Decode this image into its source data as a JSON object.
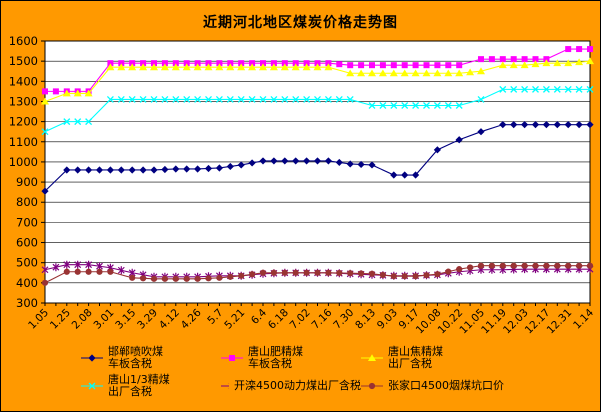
{
  "chart_data": {
    "type": "line",
    "title": "近期河北地区煤炭价格走势图",
    "xlabel": "",
    "ylabel": "",
    "ylim": [
      300,
      1600
    ],
    "ytick_step": 100,
    "grid": "horizontal",
    "legend_position": "bottom",
    "background_color": "#FF9900",
    "plot_background_color": "#FFFFFF",
    "categories": [
      "1.05",
      "1.25",
      "2.08",
      "3.01",
      "3.15",
      "3.29",
      "4.12",
      "4.26",
      "5.7",
      "5.21",
      "6.4",
      "6.18",
      "7.02",
      "7.16",
      "7.30",
      "8.13",
      "9.03",
      "9.17",
      "10.08",
      "10.22",
      "11.05",
      "11.19",
      "12.03",
      "12.17",
      "12.31",
      "1.14"
    ],
    "series": [
      {
        "name": "邯郸喷吹煤车板含税",
        "legend_lines": [
          "邯郸喷吹煤",
          "车板含税"
        ],
        "color": "#000080",
        "marker": "diamond",
        "values": [
          855,
          960,
          960,
          960,
          960,
          960,
          965,
          965,
          970,
          985,
          1005,
          1005,
          1005,
          1005,
          990,
          985,
          935,
          935,
          1060,
          1110,
          1150,
          1185,
          1185,
          1185,
          1185,
          1185
        ]
      },
      {
        "name": "唐山肥精煤车板含税",
        "legend_lines": [
          "唐山肥精煤",
          "车板含税"
        ],
        "color": "#FF00FF",
        "marker": "square",
        "values": [
          1350,
          1350,
          1350,
          1490,
          1490,
          1490,
          1490,
          1490,
          1490,
          1490,
          1490,
          1490,
          1490,
          1490,
          1480,
          1480,
          1480,
          1480,
          1480,
          1480,
          1510,
          1510,
          1510,
          1510,
          1560,
          1560
        ]
      },
      {
        "name": "唐山焦精煤出厂含税",
        "legend_lines": [
          "唐山焦精煤",
          "出厂含税"
        ],
        "color": "#FFFF00",
        "marker": "triangle",
        "values": [
          1300,
          1340,
          1340,
          1470,
          1470,
          1470,
          1470,
          1470,
          1470,
          1470,
          1470,
          1470,
          1470,
          1470,
          1440,
          1440,
          1440,
          1440,
          1440,
          1440,
          1450,
          1480,
          1480,
          1490,
          1490,
          1500
        ]
      },
      {
        "name": "唐山1/3精煤出厂含税",
        "legend_lines": [
          "唐山1/3精煤",
          "出厂含税"
        ],
        "color": "#00FFFF",
        "marker": "x",
        "values": [
          1150,
          1200,
          1200,
          1310,
          1310,
          1310,
          1310,
          1310,
          1310,
          1310,
          1310,
          1310,
          1310,
          1310,
          1310,
          1280,
          1280,
          1280,
          1280,
          1280,
          1310,
          1360,
          1360,
          1360,
          1360,
          1360
        ]
      },
      {
        "name": "开滦4500动力煤出厂含税",
        "legend_lines": [
          "开滦4500动力煤出厂含税"
        ],
        "color": "#800080",
        "marker": "star",
        "values": [
          465,
          490,
          490,
          475,
          450,
          430,
          430,
          430,
          435,
          435,
          445,
          450,
          450,
          450,
          445,
          440,
          435,
          435,
          440,
          455,
          465,
          465,
          468,
          468,
          468,
          468
        ]
      },
      {
        "name": "张家口4500烟煤坑口价",
        "legend_lines": [
          "张家口4500烟煤坑口价"
        ],
        "color": "#993333",
        "marker": "circle",
        "values": [
          400,
          455,
          455,
          455,
          425,
          420,
          420,
          420,
          425,
          435,
          450,
          450,
          450,
          450,
          448,
          445,
          433,
          433,
          443,
          468,
          485,
          485,
          485,
          485,
          485,
          485
        ]
      }
    ]
  }
}
